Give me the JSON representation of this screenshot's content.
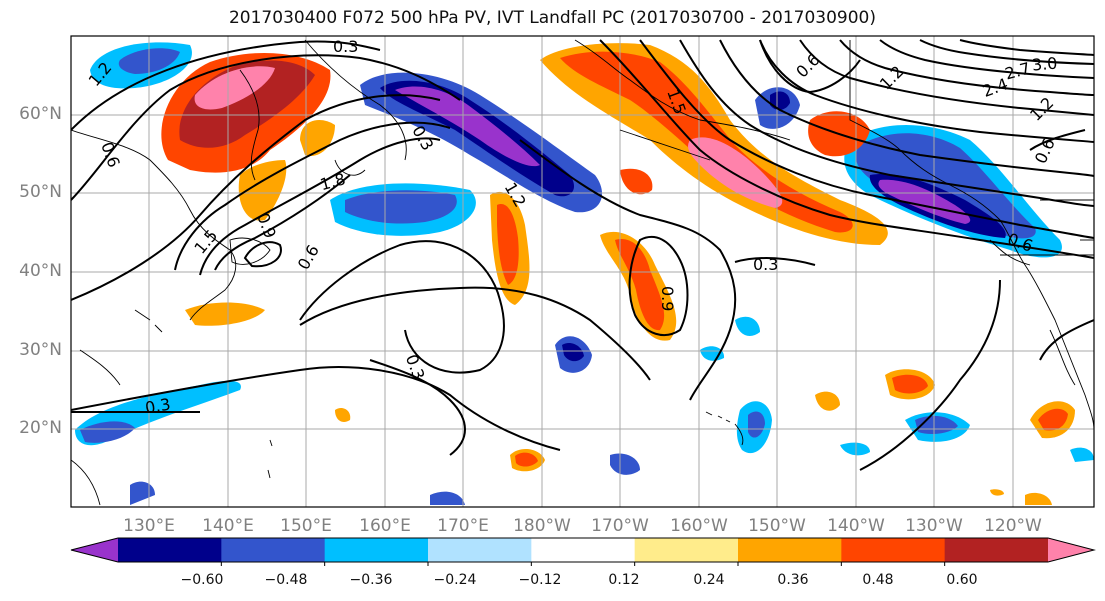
{
  "title": "2017030400 F072 500 hPa PV, IVT Landfall PC (2017030700 - 2017030900)",
  "lat_labels": [
    "60°N",
    "50°N",
    "40°N",
    "30°N",
    "20°N"
  ],
  "lon_labels": [
    "130°E",
    "140°E",
    "150°E",
    "160°E",
    "170°E",
    "180°W",
    "170°W",
    "160°W",
    "150°W",
    "140°W",
    "130°W",
    "120°W"
  ],
  "colorbar": {
    "colors": [
      "#9933cc",
      "#00008b",
      "#3355cc",
      "#00bfff",
      "#b0e2ff",
      "#ffffff",
      "#ffec8b",
      "#ffa500",
      "#ff4500",
      "#b22222",
      "#ff82ab"
    ],
    "tick_labels": [
      "−0.60",
      "−0.48",
      "−0.36",
      "−0.24",
      "−0.12",
      "0.12",
      "0.24",
      "0.36",
      "0.48",
      "0.60"
    ]
  },
  "contour_labels": [
    "0.3",
    "1.2",
    "0.6",
    "1.5",
    "1.8",
    "0.9",
    "1.2",
    "0.6",
    "0.3",
    "0.9",
    "1.5",
    "0.6",
    "1.2",
    "2.4",
    "2.7",
    "3.0",
    "0.6",
    "0.6",
    "0.3",
    "0.3",
    "0.3",
    "1.2"
  ]
}
